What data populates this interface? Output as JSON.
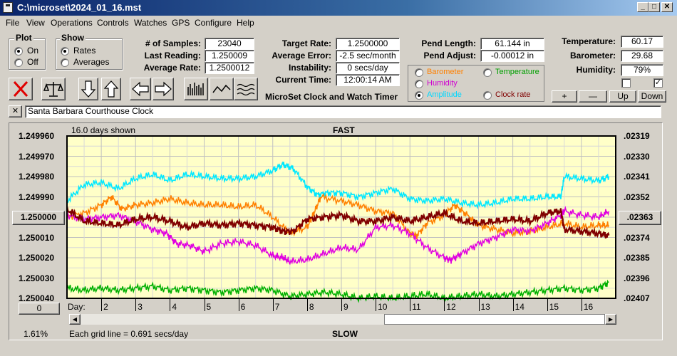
{
  "window": {
    "title": "C:\\microset\\2024_01_16.mst",
    "min": "_",
    "max": "□",
    "close": "✕"
  },
  "menu": [
    "File",
    "View",
    "Operations",
    "Controls",
    "Watches",
    "GPS",
    "Configure",
    "Help"
  ],
  "plot_group": {
    "label": "Plot",
    "options": [
      "On",
      "Off"
    ],
    "selected": "On"
  },
  "show_group": {
    "label": "Show",
    "options": [
      "Rates",
      "Averages"
    ],
    "selected": "Rates"
  },
  "stats": {
    "samples_label": "# of Samples:",
    "samples": "23040",
    "last_reading_label": "Last Reading:",
    "last_reading": "1.250009",
    "average_rate_label": "Average Rate:",
    "average_rate": "1.2500012"
  },
  "targets": {
    "target_rate_label": "Target Rate:",
    "target_rate": "1.2500000",
    "average_error_label": "Average Error:",
    "average_error": "-2.5 sec/month",
    "instability_label": "Instability:",
    "instability": "0 secs/day",
    "current_time_label": "Current Time:",
    "current_time": "12:00:14 AM"
  },
  "app_name": "MicroSet Clock and Watch Timer",
  "pend": {
    "length_label": "Pend Length:",
    "length": "61.144 in",
    "adjust_label": "Pend Adjust:",
    "adjust": "-0.00012 in"
  },
  "secondary_options": [
    {
      "label": "Barometer",
      "color": "#ff8000",
      "selected": false
    },
    {
      "label": "Temperature",
      "color": "#00a000",
      "selected": false
    },
    {
      "label": "Humidity",
      "color": "#d000d0",
      "selected": false
    },
    {
      "label": "Amplitude",
      "color": "#00d8ff",
      "selected": true
    },
    {
      "label": "Clock rate",
      "color": "#800000",
      "selected": false
    }
  ],
  "environment": {
    "temperature_label": "Temperature:",
    "temperature": "60.17",
    "barometer_label": "Barometer:",
    "barometer": "29.68",
    "humidity_label": "Humidity:",
    "humidity": "79%",
    "check1": false,
    "check2": true
  },
  "env_buttons": [
    "+",
    "—",
    "Up",
    "Down"
  ],
  "clock_name": {
    "close": "✕",
    "value": "Santa Barbara Courthouse Clock"
  },
  "plot": {
    "days_shown": "16.0 days shown",
    "fast_label": "FAST",
    "slow_label": "SLOW",
    "center_left_button": "1.250000",
    "center_right_button": ".02363",
    "zero_button": "0",
    "day_label": "Day:",
    "percent": "1.61%",
    "grid_note": "Each grid line = 0.691 secs/day"
  },
  "chart_data": {
    "type": "line",
    "x_days_range": [
      1,
      17
    ],
    "x_ticks": [
      "2",
      "3",
      "4",
      "5",
      "6",
      "7",
      "8",
      "9",
      "10",
      "11",
      "12",
      "13",
      "14",
      "15",
      "16"
    ],
    "left_axis_ticks": [
      "1.249960",
      "1.249970",
      "1.249980",
      "1.249990",
      "1.250000",
      "1.250010",
      "1.250020",
      "1.250030",
      "1.250040"
    ],
    "right_axis_ticks": [
      ".02319",
      ".02330",
      ".02341",
      ".02352",
      ".02363",
      ".02374",
      ".02385",
      ".02396",
      ".02407"
    ],
    "ylim": [
      1.25004,
      1.24996
    ],
    "grid": true,
    "series": [
      {
        "color": "#00e8ff",
        "x": [
          1,
          1.5,
          2,
          2.5,
          3,
          3.5,
          4,
          4.5,
          5,
          5.5,
          6,
          6.5,
          7,
          7.3,
          7.6,
          8,
          8.3,
          8.6,
          9,
          9.5,
          10,
          10.5,
          11,
          11.5,
          12,
          12.5,
          13,
          13.5,
          14,
          14.5,
          15,
          15.4,
          15.5,
          16,
          16.5,
          16.8
        ],
        "y": [
          1.249992,
          1.249984,
          1.249983,
          1.249986,
          1.249981,
          1.249979,
          1.249982,
          1.249979,
          1.24998,
          1.249981,
          1.249981,
          1.24998,
          1.249977,
          1.249974,
          1.249976,
          1.249985,
          1.249989,
          1.249988,
          1.249988,
          1.24999,
          1.249988,
          1.249986,
          1.249991,
          1.249992,
          1.249991,
          1.249993,
          1.249994,
          1.249993,
          1.249991,
          1.249991,
          1.24999,
          1.24999,
          1.24998,
          1.249981,
          1.249982,
          1.24998
        ]
      },
      {
        "color": "#ff8000",
        "x": [
          1,
          1.5,
          2,
          2.3,
          2.6,
          3,
          3.5,
          4,
          4.5,
          5,
          5.5,
          6,
          6.5,
          7,
          7.5,
          8,
          8.2,
          8.4,
          9,
          9.5,
          10,
          10.5,
          11,
          11.2,
          11.5,
          12,
          12.3,
          12.6,
          13,
          13.5,
          14,
          14.5,
          15,
          15.5,
          16,
          16.5,
          16.8
        ],
        "y": [
          1.25,
          1.249998,
          1.249994,
          1.24999,
          1.249996,
          1.249994,
          1.249993,
          1.249991,
          1.249993,
          1.249994,
          1.249994,
          1.249995,
          1.249994,
          1.25,
          1.250008,
          1.250005,
          1.249998,
          1.24999,
          1.249992,
          1.249994,
          1.249997,
          1.249998,
          1.250008,
          1.250009,
          1.250003,
          1.249999,
          1.249994,
          1.249998,
          1.250004,
          1.250006,
          1.250008,
          1.250007,
          1.250005,
          1.250003,
          1.250005,
          1.250004,
          1.250004
        ]
      },
      {
        "color": "#e000e0",
        "x": [
          1,
          1.5,
          2,
          2.5,
          3,
          3.5,
          3.9,
          4.2,
          4.6,
          5,
          5.5,
          6,
          6.5,
          7,
          7.3,
          7.5,
          8,
          8.5,
          9,
          9.5,
          10,
          10.5,
          11,
          11.5,
          12,
          12.2,
          12.5,
          13,
          13.5,
          14,
          14.5,
          15,
          15.4,
          15.5,
          16,
          16.5,
          16.8
        ],
        "y": [
          1.249999,
          1.250001,
          1.25,
          1.249999,
          1.250002,
          1.250006,
          1.250008,
          1.250013,
          1.250014,
          1.250017,
          1.250013,
          1.250012,
          1.250014,
          1.250019,
          1.25002,
          1.250022,
          1.250021,
          1.250018,
          1.250015,
          1.250016,
          1.250005,
          1.250004,
          1.250008,
          1.250015,
          1.25002,
          1.250021,
          1.250018,
          1.250013,
          1.25001,
          1.250006,
          1.250007,
          1.250003,
          1.249999,
          1.249997,
          1.249999,
          1.25,
          1.249997
        ]
      },
      {
        "color": "#00b000",
        "x": [
          1,
          1.5,
          2,
          2.5,
          3,
          3.5,
          4,
          4.5,
          5,
          5.5,
          6,
          6.5,
          7,
          7.5,
          8,
          8.5,
          9,
          9.5,
          10,
          10.5,
          11,
          11.5,
          12,
          12.5,
          13,
          13.5,
          14,
          14.5,
          15,
          15.5,
          16,
          16.5,
          16.8
        ],
        "y": [
          1.250035,
          1.250036,
          1.250035,
          1.250036,
          1.250035,
          1.250034,
          1.250036,
          1.250035,
          1.250036,
          1.250037,
          1.250036,
          1.250035,
          1.250036,
          1.250039,
          1.250038,
          1.250037,
          1.250038,
          1.25004,
          1.250039,
          1.25004,
          1.250039,
          1.250038,
          1.25004,
          1.250039,
          1.250038,
          1.250039,
          1.250038,
          1.250037,
          1.250036,
          1.250035,
          1.250036,
          1.250035,
          1.250032
        ]
      },
      {
        "color": "#800000",
        "x": [
          1,
          1.5,
          2,
          2.5,
          3,
          3.5,
          4,
          4.5,
          5,
          5.5,
          6,
          6.5,
          7,
          7.3,
          7.6,
          8,
          8.5,
          9,
          9.5,
          10,
          10.5,
          11,
          11.5,
          12,
          12.5,
          13,
          13.5,
          14,
          14.5,
          15,
          15.4,
          15.5,
          16,
          16.5,
          16.8
        ],
        "y": [
          1.249996,
          1.250002,
          1.250003,
          1.250004,
          1.250001,
          1.25,
          1.250002,
          1.250005,
          1.250003,
          1.250004,
          1.250003,
          1.250004,
          1.250005,
          1.250007,
          1.250007,
          1.250001,
          1.25,
          1.249999,
          1.250002,
          1.250002,
          1.25,
          1.250002,
          1.25,
          1.249998,
          1.250002,
          1.250003,
          1.250002,
          1.250001,
          1.250002,
          1.249998,
          1.249997,
          1.250006,
          1.250007,
          1.250008,
          1.250009
        ]
      }
    ]
  }
}
